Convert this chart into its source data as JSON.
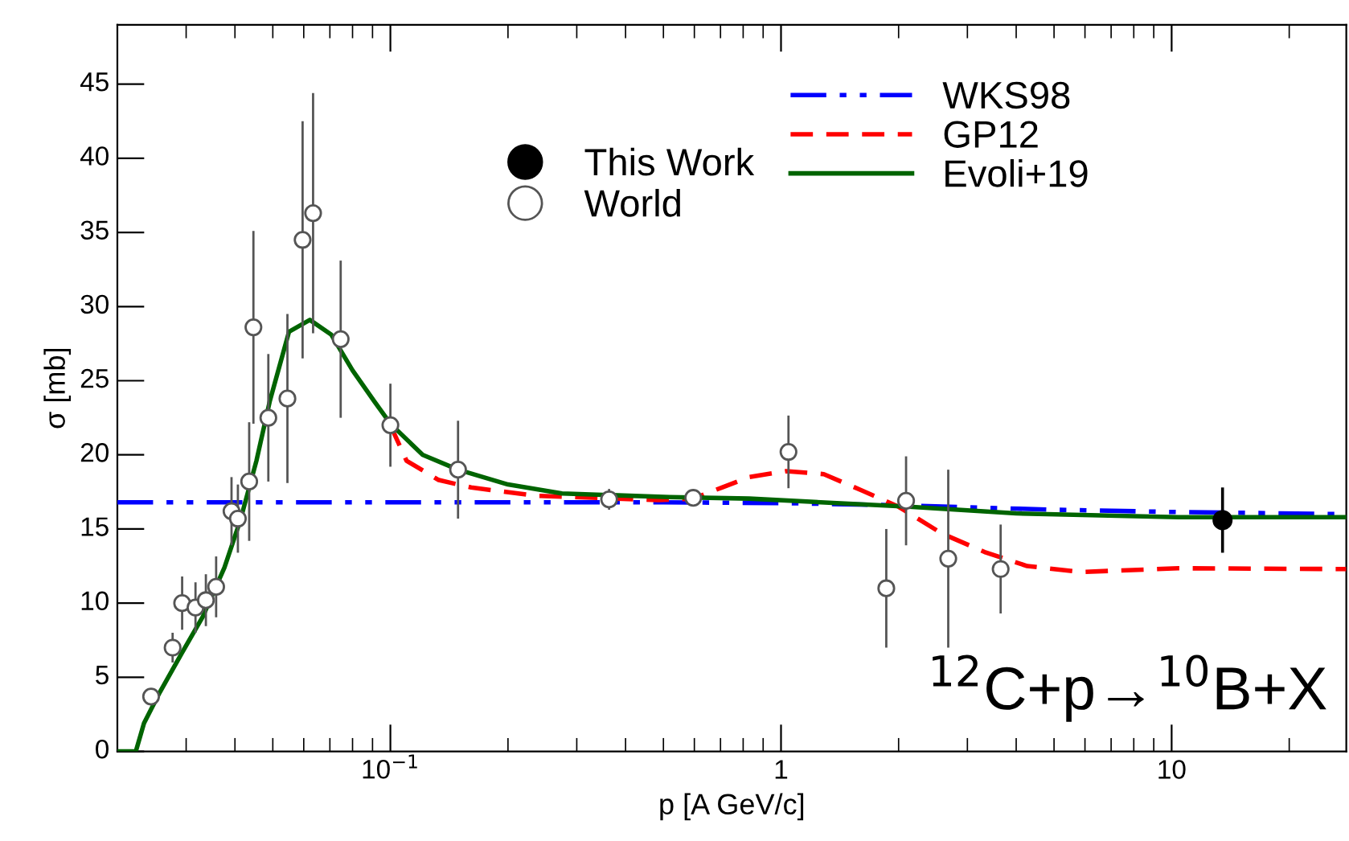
{
  "chart_data": {
    "type": "scatter",
    "xlabel": "p [A GeV/c]",
    "ylabel": "σ [mb]",
    "log": "x",
    "xlim": [
      0.02,
      28
    ],
    "xticks": [
      {
        "value": 0.1,
        "label": "10$^{−1}$"
      },
      1,
      10
    ],
    "ylim": [
      0,
      49
    ],
    "yticks": [
      0,
      5,
      10,
      15,
      20,
      25,
      30,
      35,
      40,
      45
    ],
    "grid": false,
    "legend": "top",
    "annotations": [
      "$^{12}$C+p→$^{10}$B+X"
    ],
    "series": [
      {
        "name": "This Work",
        "marker": "circle",
        "color": "#000000",
        "x": [
          13.5
        ],
        "values": [
          15.6
        ],
        "errors": [
          2.2
        ]
      },
      {
        "name": "World",
        "marker": "circle",
        "color": "#ffffff",
        "x": [
          0.0244,
          0.0277,
          0.0293,
          0.0317,
          0.0337,
          0.0358,
          0.0392,
          0.0407,
          0.0435,
          0.0446,
          0.0487,
          0.0545,
          0.0596,
          0.0634,
          0.0746,
          0.1,
          0.149,
          0.363,
          0.596,
          1.045,
          1.86,
          2.09,
          2.68,
          3.65
        ],
        "values": [
          3.7,
          7.0,
          10.0,
          9.7,
          10.2,
          11.1,
          16.2,
          15.7,
          18.2,
          28.6,
          22.5,
          23.8,
          34.5,
          36.3,
          27.8,
          22.0,
          19.0,
          17.0,
          17.1,
          20.2,
          11.0,
          16.9,
          13.0,
          12.3
        ],
        "errors": [
          null,
          1.0,
          1.8,
          1.7,
          1.75,
          2.05,
          2.3,
          2.3,
          4.0,
          6.5,
          4.3,
          5.7,
          8.0,
          8.1,
          5.3,
          2.8,
          3.3,
          0.7,
          null,
          2.45,
          4.0,
          3.0,
          6.0,
          3.0
        ]
      },
      {
        "name": "WKS98",
        "type": "line",
        "line_style": "dashdot",
        "color": "#0000ff",
        "x": [
          0.02,
          0.5,
          1,
          2,
          5,
          10,
          28
        ],
        "values": [
          16.8,
          16.8,
          16.75,
          16.6,
          16.3,
          16.15,
          16.0
        ]
      },
      {
        "name": "GP12",
        "type": "line",
        "line_style": "dashed",
        "color": "#ff0000",
        "x": [
          0.1,
          0.11,
          0.133,
          0.161,
          0.234,
          0.485,
          0.596,
          0.706,
          0.828,
          1.03,
          1.287,
          1.61,
          2.0,
          2.58,
          3.32,
          4.27,
          5.85,
          10.4,
          28
        ],
        "values": [
          22.0,
          19.6,
          18.3,
          17.8,
          17.25,
          16.95,
          17.05,
          17.8,
          18.5,
          18.9,
          18.7,
          17.6,
          16.5,
          14.7,
          13.45,
          12.5,
          12.1,
          12.35,
          12.3
        ]
      },
      {
        "name": "Evoli+19",
        "type": "line",
        "line_style": "solid",
        "color": "#006400",
        "x": [
          0.02,
          0.0223,
          0.0234,
          0.0257,
          0.0292,
          0.0331,
          0.0376,
          0.0413,
          0.0454,
          0.0491,
          0.055,
          0.0622,
          0.0706,
          0.08,
          0.091,
          0.1,
          0.121,
          0.149,
          0.2,
          0.275,
          0.518,
          0.828,
          2.13,
          4.0,
          10.4,
          28
        ],
        "values": [
          0,
          0,
          1.9,
          4.0,
          6.6,
          9.1,
          12.4,
          15.6,
          19.6,
          23.6,
          28.3,
          29.1,
          28.1,
          25.7,
          23.6,
          22.1,
          20.0,
          19.0,
          18.0,
          17.4,
          17.15,
          17.05,
          16.5,
          16.05,
          15.8,
          15.8
        ]
      }
    ]
  }
}
